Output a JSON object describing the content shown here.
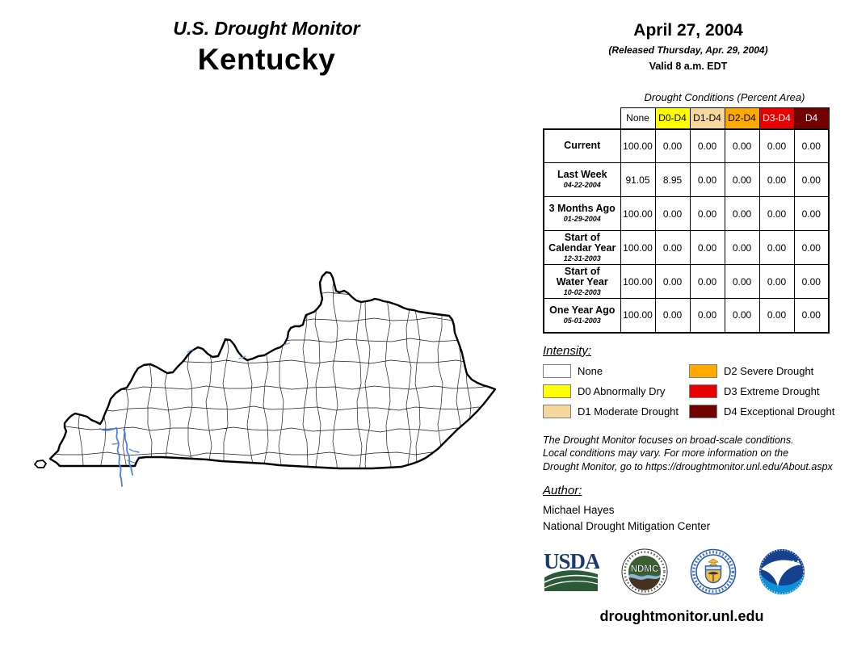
{
  "header": {
    "brand": "U.S. Drought Monitor",
    "region": "Kentucky"
  },
  "date_block": {
    "date": "April 27, 2004",
    "released": "(Released Thursday, Apr. 29, 2004)",
    "valid": "Valid 8 a.m. EDT"
  },
  "table": {
    "title": "Drought Conditions (Percent Area)",
    "columns": [
      {
        "label": "None",
        "bg": "#FFFFFF",
        "fg": "#000000"
      },
      {
        "label": "D0-D4",
        "bg": "#FFFF00",
        "fg": "#000000"
      },
      {
        "label": "D1-D4",
        "bg": "#F6D79E",
        "fg": "#000000"
      },
      {
        "label": "D2-D4",
        "bg": "#FFAA00",
        "fg": "#000000"
      },
      {
        "label": "D3-D4",
        "bg": "#E60000",
        "fg": "#FFFFFF"
      },
      {
        "label": "D4",
        "bg": "#730000",
        "fg": "#FFFFFF"
      }
    ],
    "rows": [
      {
        "label": "Current",
        "sublabel": "",
        "values": [
          "100.00",
          "0.00",
          "0.00",
          "0.00",
          "0.00",
          "0.00"
        ]
      },
      {
        "label": "Last Week",
        "sublabel": "04-22-2004",
        "values": [
          "91.05",
          "8.95",
          "0.00",
          "0.00",
          "0.00",
          "0.00"
        ]
      },
      {
        "label": "3 Months Ago",
        "sublabel": "01-29-2004",
        "values": [
          "100.00",
          "0.00",
          "0.00",
          "0.00",
          "0.00",
          "0.00"
        ]
      },
      {
        "label": "Start of\nCalendar Year",
        "sublabel": "12-31-2003",
        "values": [
          "100.00",
          "0.00",
          "0.00",
          "0.00",
          "0.00",
          "0.00"
        ]
      },
      {
        "label": "Start of\nWater Year",
        "sublabel": "10-02-2003",
        "values": [
          "100.00",
          "0.00",
          "0.00",
          "0.00",
          "0.00",
          "0.00"
        ]
      },
      {
        "label": "One Year Ago",
        "sublabel": "05-01-2003",
        "values": [
          "100.00",
          "0.00",
          "0.00",
          "0.00",
          "0.00",
          "0.00"
        ]
      }
    ]
  },
  "legend": {
    "heading": "Intensity:",
    "left": [
      {
        "label": "None",
        "color": "#FFFFFF"
      },
      {
        "label": "D0 Abnormally Dry",
        "color": "#FFFF00"
      },
      {
        "label": "D1 Moderate Drought",
        "color": "#F6D79E"
      }
    ],
    "right": [
      {
        "label": "D2 Severe Drought",
        "color": "#FFAA00"
      },
      {
        "label": "D3 Extreme Drought",
        "color": "#E60000"
      },
      {
        "label": "D4 Exceptional Drought",
        "color": "#730000"
      }
    ]
  },
  "disclaimer": "The Drought Monitor focuses on broad-scale conditions.\nLocal conditions may vary. For more information on the\nDrought Monitor, go to https://droughtmonitor.unl.edu/About.aspx",
  "author": {
    "heading": "Author:",
    "name": "Michael Hayes",
    "org": "National Drought Mitigation Center"
  },
  "logos": {
    "usda_label": "USDA",
    "ndmc_label": "NDMC",
    "noaa_label": "NOAA"
  },
  "footer": {
    "url": "droughtmonitor.unl.edu"
  },
  "map": {
    "state": "Kentucky",
    "fill": "#FFFFFF",
    "outline_color": "#000000",
    "water_color": "#4d7fe0"
  }
}
